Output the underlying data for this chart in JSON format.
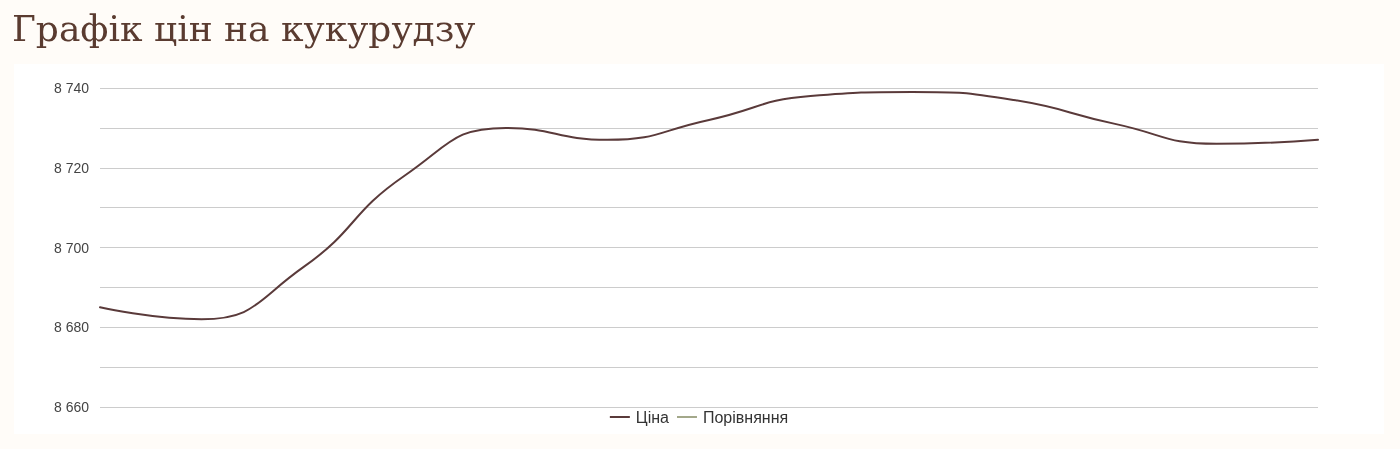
{
  "chart_data": {
    "type": "line",
    "title": "Графік цін на кукурудзу",
    "categories": [
      null,
      null,
      null,
      null,
      null,
      null,
      null,
      null,
      null,
      null,
      null,
      null,
      null
    ],
    "series": [
      {
        "name": "Ціна",
        "color": "#5a3a3a",
        "values": [
          8685,
          8682,
          8695,
          8718,
          8730,
          8727,
          8732,
          8738,
          8739,
          8737,
          8731,
          8726,
          8727
        ]
      },
      {
        "name": "Порівняння",
        "color": "#a3a88a",
        "values": [
          null,
          null,
          null,
          null,
          null,
          null,
          null,
          null,
          null,
          null,
          null,
          null,
          null
        ]
      }
    ],
    "ylim": [
      8660,
      8740
    ],
    "yticks": [
      8660,
      {
        "value": 8670,
        "label": null
      },
      8680,
      {
        "value": 8690,
        "label": null
      },
      8700,
      {
        "value": 8710,
        "label": null
      },
      8720,
      {
        "value": 8730,
        "label": null
      },
      8740
    ],
    "grid": "y",
    "legend": "bottom",
    "marker": "none",
    "line_style": "solid"
  }
}
